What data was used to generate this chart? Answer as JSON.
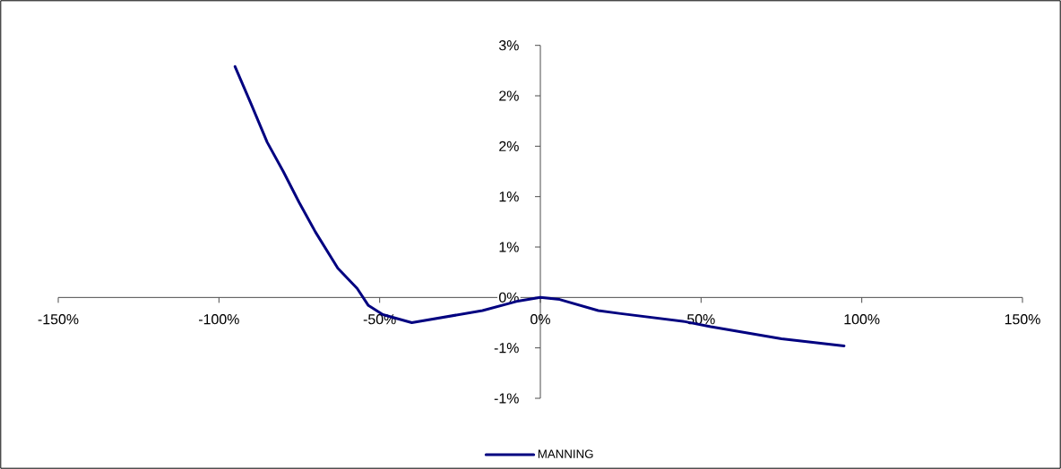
{
  "chart_data": {
    "type": "line",
    "x": [
      -95,
      -90,
      -85,
      -80,
      -75,
      -70,
      -63,
      -57,
      -53.5,
      -49,
      -40,
      -18,
      -7.5,
      0,
      6,
      18,
      25,
      45,
      53,
      75,
      94.5
    ],
    "series": [
      {
        "name": "MANNING",
        "color": "#000080",
        "values": [
          2.29,
          1.92,
          1.54,
          1.25,
          0.94,
          0.65,
          0.29,
          0.09,
          -0.08,
          -0.17,
          -0.25,
          -0.13,
          -0.04,
          0.0,
          -0.02,
          -0.13,
          -0.16,
          -0.24,
          -0.29,
          -0.41,
          -0.48
        ]
      }
    ],
    "xlim": [
      -150,
      150
    ],
    "xticks": [
      {
        "value": -150,
        "label": "-150%"
      },
      {
        "value": -100,
        "label": "-100%"
      },
      {
        "value": -50,
        "label": "-50%"
      },
      {
        "value": 0,
        "label": "0%"
      },
      {
        "value": 50,
        "label": "50%"
      },
      {
        "value": 100,
        "label": "100%"
      },
      {
        "value": 150,
        "label": "150%"
      }
    ],
    "ylim": [
      -1,
      2.5
    ],
    "yticks": [
      {
        "value": -1,
        "label": "-1%"
      },
      {
        "value": -0.5,
        "label": "-1%"
      },
      {
        "value": 0,
        "label": "0%"
      },
      {
        "value": 0.5,
        "label": "1%"
      },
      {
        "value": 1,
        "label": "1%"
      },
      {
        "value": 1.5,
        "label": "2%"
      },
      {
        "value": 2,
        "label": "2%"
      },
      {
        "value": 2.5,
        "label": "3%"
      }
    ],
    "legend": "bottom"
  }
}
